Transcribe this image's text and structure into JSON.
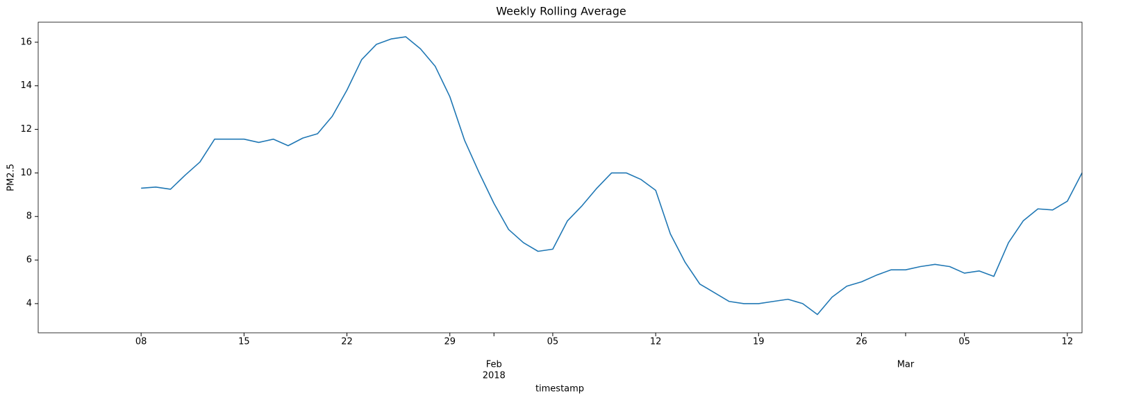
{
  "chart_data": {
    "type": "line",
    "title": "Weekly Rolling Average",
    "x_label": "timestamp",
    "y_label": "PM2.5",
    "x": [
      "2018-01-08",
      "2018-01-09",
      "2018-01-10",
      "2018-01-11",
      "2018-01-12",
      "2018-01-13",
      "2018-01-14",
      "2018-01-15",
      "2018-01-16",
      "2018-01-17",
      "2018-01-18",
      "2018-01-19",
      "2018-01-20",
      "2018-01-21",
      "2018-01-22",
      "2018-01-23",
      "2018-01-24",
      "2018-01-25",
      "2018-01-26",
      "2018-01-27",
      "2018-01-28",
      "2018-01-29",
      "2018-01-30",
      "2018-01-31",
      "2018-02-01",
      "2018-02-02",
      "2018-02-03",
      "2018-02-04",
      "2018-02-05",
      "2018-02-06",
      "2018-02-07",
      "2018-02-08",
      "2018-02-09",
      "2018-02-10",
      "2018-02-11",
      "2018-02-12",
      "2018-02-13",
      "2018-02-14",
      "2018-02-15",
      "2018-02-16",
      "2018-02-17",
      "2018-02-18",
      "2018-02-19",
      "2018-02-20",
      "2018-02-21",
      "2018-02-22",
      "2018-02-23",
      "2018-02-24",
      "2018-02-25",
      "2018-02-26",
      "2018-02-27",
      "2018-02-28",
      "2018-03-01",
      "2018-03-02",
      "2018-03-03",
      "2018-03-04",
      "2018-03-05",
      "2018-03-06",
      "2018-03-07",
      "2018-03-08",
      "2018-03-09",
      "2018-03-10",
      "2018-03-11",
      "2018-03-12",
      "2018-03-13"
    ],
    "series": [
      {
        "name": "PM2.5",
        "color": "#1f77b4",
        "values": [
          9.3,
          9.35,
          9.25,
          9.9,
          10.5,
          11.55,
          11.55,
          11.55,
          11.4,
          11.55,
          11.25,
          11.6,
          11.8,
          12.6,
          13.8,
          15.2,
          15.9,
          16.15,
          16.25,
          15.7,
          14.9,
          13.5,
          11.5,
          10.0,
          8.6,
          7.4,
          6.8,
          6.4,
          6.5,
          7.8,
          8.5,
          9.3,
          10.0,
          10.0,
          9.7,
          9.2,
          7.2,
          5.9,
          4.9,
          4.5,
          4.1,
          4.0,
          4.0,
          4.1,
          4.2,
          4.0,
          3.5,
          4.3,
          4.8,
          5.0,
          5.3,
          5.55,
          5.55,
          5.7,
          5.8,
          5.7,
          5.4,
          5.5,
          5.25,
          6.8,
          7.8,
          8.35,
          8.3,
          8.7,
          10.0
        ]
      }
    ],
    "xlim": [
      "2018-01-01",
      "2018-03-13"
    ],
    "xticks": [
      {
        "value": "2018-01-08",
        "label": "08"
      },
      {
        "value": "2018-01-15",
        "label": "15"
      },
      {
        "value": "2018-01-22",
        "label": "22"
      },
      {
        "value": "2018-01-29",
        "label": "29"
      },
      {
        "value": "2018-02-05",
        "label": "05"
      },
      {
        "value": "2018-02-12",
        "label": "12"
      },
      {
        "value": "2018-02-19",
        "label": "19"
      },
      {
        "value": "2018-02-26",
        "label": "26"
      },
      {
        "value": "2018-03-05",
        "label": "05"
      },
      {
        "value": "2018-03-12",
        "label": "12"
      }
    ],
    "month_ticks": [
      {
        "value": "2018-02-01",
        "label": "Feb"
      },
      {
        "value": "2018-03-01",
        "label": "Mar"
      }
    ],
    "year_label": "2018",
    "ylim": [
      2.66,
      16.92
    ],
    "yticks": [
      4,
      6,
      8,
      10,
      12,
      14,
      16
    ]
  }
}
